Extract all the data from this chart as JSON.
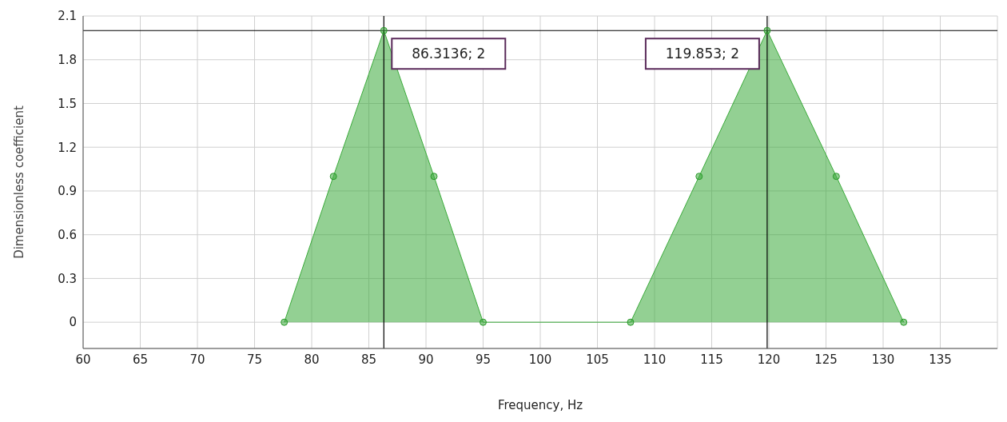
{
  "chart_data": {
    "type": "area",
    "xlabel": "Frequency, Hz",
    "ylabel": "Dimensionless coefficient",
    "x": [
      77.6,
      81.9,
      86.3136,
      90.7,
      95,
      107.9,
      113.9,
      119.853,
      125.9,
      131.8
    ],
    "series": [
      {
        "color": "#3aaa3a",
        "values": [
          0,
          1,
          2,
          1,
          0,
          0,
          1,
          2,
          1,
          0
        ]
      }
    ],
    "xlim": [
      60,
      140
    ],
    "xticks": [
      60,
      65,
      70,
      75,
      80,
      85,
      90,
      95,
      100,
      105,
      110,
      115,
      120,
      125,
      130,
      135
    ],
    "ylim": [
      -0.18,
      2.1
    ],
    "yticks": [
      0,
      0.3,
      0.6,
      0.9,
      1.2,
      1.5,
      1.8,
      2.1
    ],
    "grid": true,
    "marker": "circle",
    "ref_lines": [
      {
        "axis": "x",
        "value": 86.3136,
        "color": "#000000"
      },
      {
        "axis": "x",
        "value": 119.853,
        "color": "#000000"
      },
      {
        "axis": "y",
        "value": 2,
        "color": "#000000"
      }
    ],
    "annotations": [
      {
        "text": "86.3136; 2",
        "x": 86.3136,
        "y": 2
      },
      {
        "text": "119.853; 2",
        "x": 119.853,
        "y": 2
      }
    ]
  }
}
